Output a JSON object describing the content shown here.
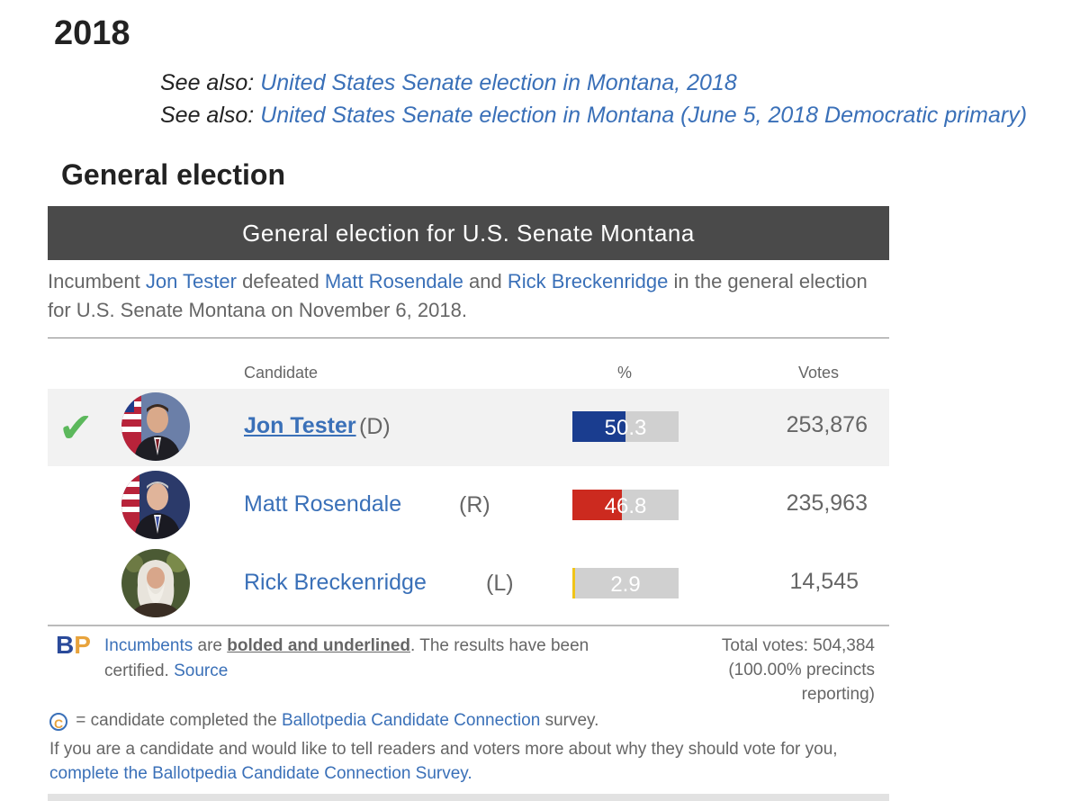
{
  "year_heading": "2018",
  "see_also": [
    {
      "prefix": "See also:",
      "link": "United States Senate election in Montana, 2018"
    },
    {
      "prefix": "See also:",
      "link": "United States Senate election in Montana (June 5, 2018 Democratic primary)"
    }
  ],
  "section_heading": "General election",
  "widget": {
    "title": "General election for U.S. Senate Montana",
    "summary": {
      "part1": "Incumbent ",
      "winner": "Jon Tester",
      "part2": " defeated ",
      "loser1": "Matt Rosendale",
      "part3": " and ",
      "loser2": "Rick Breckenridge",
      "part4": " in the general election for U.S. Senate Montana on November 6, 2018."
    },
    "columns": {
      "candidate": "Candidate",
      "percent": "%",
      "votes": "Votes"
    },
    "candidates": [
      {
        "name": "Jon Tester",
        "party": "(D)",
        "percent": "50.3",
        "votes": "253,876",
        "winner": true,
        "incumbent": true,
        "bar_color": "#1a3d8f",
        "fill": 0.503
      },
      {
        "name": "Matt Rosendale",
        "party": "(R)",
        "percent": "46.8",
        "votes": "235,963",
        "winner": false,
        "incumbent": false,
        "bar_color": "#cc2a1f",
        "fill": 0.468
      },
      {
        "name": "Rick Breckenridge",
        "party": "(L)",
        "percent": "2.9",
        "votes": "14,545",
        "winner": false,
        "incumbent": false,
        "bar_color": "#f0c419",
        "fill": 0.029
      }
    ],
    "footer": {
      "logo_b": "B",
      "logo_p": "P",
      "incumbents_link": "Incumbents",
      "text1": " are ",
      "bold_underlined": "bolded and underlined",
      "text2": ". The results have been certified. ",
      "source_link": "Source",
      "total_votes_line1": "Total votes: 504,384",
      "total_votes_line2": "(100.00% precincts reporting)",
      "cc_icon_glyph": "C",
      "cc_text1": " = candidate completed the ",
      "cc_link": "Ballotpedia Candidate Connection",
      "cc_text2": " survey.",
      "invite_text": "If you are a candidate and would like to tell readers and voters more about why they should vote for you, ",
      "invite_link": "complete the Ballotpedia Candidate Connection Survey."
    }
  },
  "colors": {
    "link": "#3a70b8",
    "header_bg": "#4a4a4a",
    "check": "#5cb85c"
  }
}
